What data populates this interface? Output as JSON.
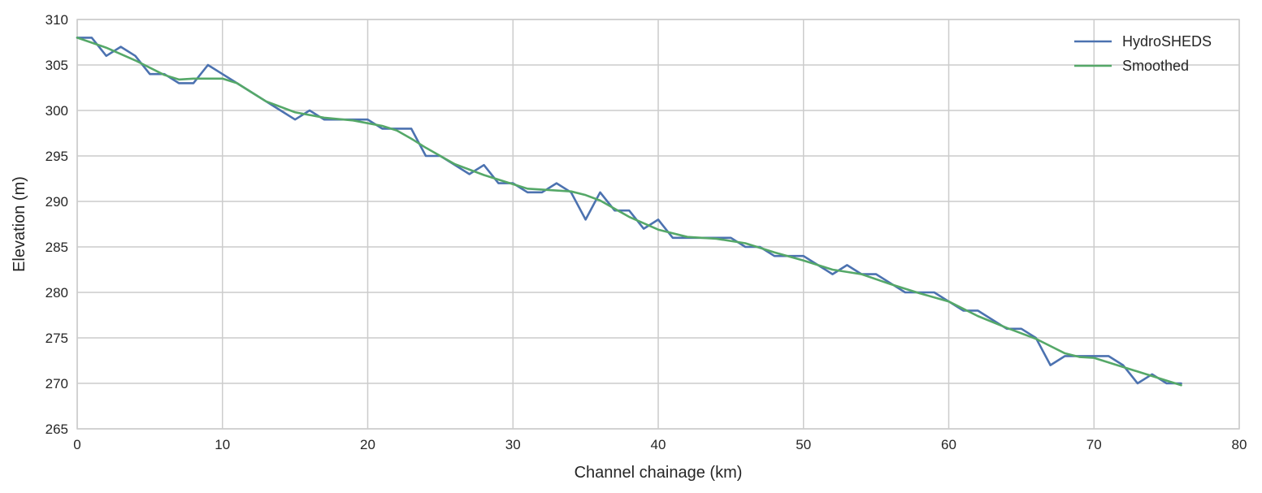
{
  "chart_data": {
    "type": "line",
    "title": "",
    "xlabel": "Channel chainage (km)",
    "ylabel": "Elevation (m)",
    "xlim": [
      0,
      80
    ],
    "ylim": [
      265,
      310
    ],
    "xticks": [
      0,
      10,
      20,
      30,
      40,
      50,
      60,
      70,
      80
    ],
    "yticks": [
      265,
      270,
      275,
      280,
      285,
      290,
      295,
      300,
      305,
      310
    ],
    "grid": true,
    "legend_position": "top-right",
    "series": [
      {
        "name": "HydroSHEDS",
        "color": "#4c72b0",
        "x": [
          0,
          1,
          2,
          3,
          4,
          5,
          6,
          7,
          8,
          9,
          10,
          11,
          12,
          13,
          14,
          15,
          16,
          17,
          18,
          19,
          20,
          21,
          22,
          23,
          24,
          25,
          26,
          27,
          28,
          29,
          30,
          31,
          32,
          33,
          34,
          35,
          36,
          37,
          38,
          39,
          40,
          41,
          42,
          43,
          44,
          45,
          46,
          47,
          48,
          49,
          50,
          51,
          52,
          53,
          54,
          55,
          56,
          57,
          58,
          59,
          60,
          61,
          62,
          63,
          64,
          65,
          66,
          67,
          68,
          69,
          70,
          71,
          72,
          73,
          74,
          75,
          76
        ],
        "y": [
          308,
          308,
          306,
          307,
          306,
          304,
          304,
          303,
          303,
          305,
          304,
          303,
          302,
          301,
          300,
          299,
          300,
          299,
          299,
          299,
          299,
          298,
          298,
          298,
          295,
          295,
          294,
          293,
          294,
          292,
          292,
          291,
          291,
          292,
          291,
          288,
          291,
          289,
          289,
          287,
          288,
          286,
          286,
          286,
          286,
          286,
          285,
          285,
          284,
          284,
          284,
          283,
          282,
          283,
          282,
          282,
          281,
          280,
          280,
          280,
          279,
          278,
          278,
          277,
          276,
          276,
          275,
          272,
          273,
          273,
          273,
          273,
          272,
          270,
          271,
          270,
          270
        ]
      },
      {
        "name": "Smoothed",
        "color": "#55a868",
        "x": [
          0,
          2,
          4,
          6,
          7,
          8,
          10,
          11,
          13,
          15,
          17,
          19,
          21,
          22,
          23,
          24,
          26,
          28,
          30,
          31,
          33,
          34,
          35,
          36,
          38,
          40,
          42,
          44,
          46,
          48,
          50,
          52,
          54,
          56,
          58,
          60,
          62,
          64,
          66,
          68,
          69,
          70,
          72,
          74,
          76
        ],
        "y": [
          308,
          306.9,
          305.5,
          303.9,
          303.4,
          303.5,
          303.5,
          303,
          301,
          299.8,
          299.2,
          298.9,
          298.3,
          297.8,
          296.9,
          295.9,
          294.1,
          292.9,
          291.9,
          291.4,
          291.2,
          291.1,
          290.7,
          290.1,
          288.3,
          286.9,
          286.1,
          285.9,
          285.4,
          284.4,
          283.5,
          282.5,
          282,
          280.9,
          279.9,
          279,
          277.4,
          276.1,
          274.9,
          273.3,
          272.9,
          272.8,
          271.8,
          270.8,
          269.8
        ]
      }
    ]
  }
}
